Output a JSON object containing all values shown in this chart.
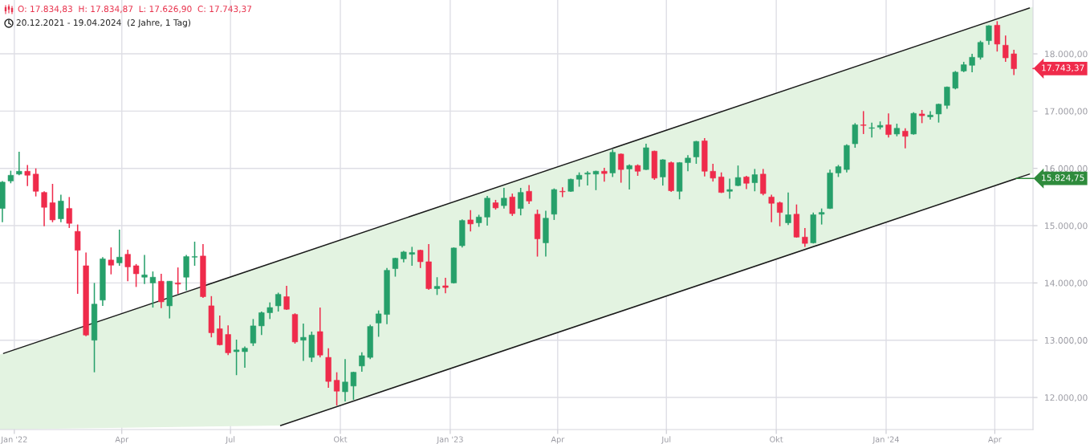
{
  "chart_data": {
    "type": "candlestick",
    "title": "O: 17.834,83  H: 17.834,87  L: 17.626,90  C: 17.743,37",
    "subtitle": "20.12.2021 - 19.04.2024  (2 Jahre, 1 Tag)",
    "x": [
      "2021-12-22",
      "2021-12-29",
      "2022-01-05",
      "2022-01-12",
      "2022-01-19",
      "2022-01-26",
      "2022-02-02",
      "2022-02-09",
      "2022-02-16",
      "2022-02-23",
      "2022-03-02",
      "2022-03-09",
      "2022-03-16",
      "2022-03-23",
      "2022-03-30",
      "2022-04-06",
      "2022-04-13",
      "2022-04-20",
      "2022-04-27",
      "2022-05-04",
      "2022-05-11",
      "2022-05-18",
      "2022-05-25",
      "2022-06-01",
      "2022-06-08",
      "2022-06-15",
      "2022-06-22",
      "2022-06-29",
      "2022-07-06",
      "2022-07-13",
      "2022-07-20",
      "2022-07-27",
      "2022-08-03",
      "2022-08-10",
      "2022-08-17",
      "2022-08-24",
      "2022-08-31",
      "2022-09-07",
      "2022-09-14",
      "2022-09-21",
      "2022-09-28",
      "2022-10-05",
      "2022-10-12",
      "2022-10-19",
      "2022-10-26",
      "2022-11-02",
      "2022-11-09",
      "2022-11-16",
      "2022-11-23",
      "2022-11-30",
      "2022-12-07",
      "2022-12-14",
      "2022-12-21",
      "2022-12-28",
      "2023-01-04",
      "2023-01-11",
      "2023-01-18",
      "2023-01-25",
      "2023-02-01",
      "2023-02-08",
      "2023-02-15",
      "2023-02-22",
      "2023-03-01",
      "2023-03-08",
      "2023-03-15",
      "2023-03-22",
      "2023-03-29",
      "2023-04-05",
      "2023-04-12",
      "2023-04-19",
      "2023-04-26",
      "2023-05-03",
      "2023-05-10",
      "2023-05-17",
      "2023-05-24",
      "2023-05-31",
      "2023-06-07",
      "2023-06-14",
      "2023-06-21",
      "2023-06-28",
      "2023-07-05",
      "2023-07-12",
      "2023-07-19",
      "2023-07-26",
      "2023-08-02",
      "2023-08-09",
      "2023-08-16",
      "2023-08-23",
      "2023-08-30",
      "2023-09-06",
      "2023-09-13",
      "2023-09-20",
      "2023-09-27",
      "2023-10-04",
      "2023-10-11",
      "2023-10-18",
      "2023-10-25",
      "2023-11-01",
      "2023-11-08",
      "2023-11-15",
      "2023-11-22",
      "2023-11-29",
      "2023-12-06",
      "2023-12-13",
      "2023-12-20",
      "2023-12-27",
      "2024-01-03",
      "2024-01-10",
      "2024-01-17",
      "2024-01-24",
      "2024-01-31",
      "2024-02-07",
      "2024-02-14",
      "2024-02-21",
      "2024-02-28",
      "2024-03-06",
      "2024-03-13",
      "2024-03-20",
      "2024-03-27",
      "2024-04-03",
      "2024-04-10",
      "2024-04-17"
    ],
    "ohlc": [
      [
        15300,
        15780,
        15060,
        15760
      ],
      [
        15780,
        15960,
        15740,
        15880
      ],
      [
        15900,
        16290,
        15880,
        15950
      ],
      [
        15950,
        16060,
        15690,
        15880
      ],
      [
        15900,
        16000,
        15510,
        15600
      ],
      [
        15580,
        15600,
        14990,
        15320
      ],
      [
        15400,
        15730,
        15060,
        15100
      ],
      [
        15120,
        15540,
        15060,
        15430
      ],
      [
        15300,
        15500,
        14960,
        15040
      ],
      [
        14900,
        15020,
        13810,
        14570
      ],
      [
        14300,
        14530,
        13070,
        13090
      ],
      [
        13000,
        14000,
        12440,
        13630
      ],
      [
        13700,
        14450,
        13600,
        14420
      ],
      [
        14400,
        14620,
        14150,
        14310
      ],
      [
        14350,
        14930,
        14300,
        14450
      ],
      [
        14500,
        14580,
        14030,
        14280
      ],
      [
        14300,
        14330,
        13930,
        14160
      ],
      [
        14100,
        14490,
        13980,
        14140
      ],
      [
        14000,
        14200,
        13570,
        14100
      ],
      [
        14030,
        14160,
        13560,
        13670
      ],
      [
        13600,
        14030,
        13380,
        14030
      ],
      [
        14000,
        14270,
        13810,
        13980
      ],
      [
        14100,
        14490,
        13870,
        14460
      ],
      [
        14450,
        14720,
        14300,
        14460
      ],
      [
        14470,
        14680,
        13740,
        13760
      ],
      [
        13600,
        13770,
        13050,
        13130
      ],
      [
        13200,
        13430,
        12910,
        12920
      ],
      [
        13100,
        13260,
        12740,
        12780
      ],
      [
        12800,
        13010,
        12390,
        12830
      ],
      [
        12800,
        12890,
        12520,
        12860
      ],
      [
        12950,
        13370,
        12900,
        13250
      ],
      [
        13250,
        13500,
        13090,
        13480
      ],
      [
        13480,
        13660,
        13370,
        13570
      ],
      [
        13600,
        13830,
        13500,
        13800
      ],
      [
        13760,
        13950,
        13530,
        13540
      ],
      [
        13450,
        13470,
        12940,
        12970
      ],
      [
        13000,
        13290,
        12640,
        13050
      ],
      [
        12700,
        13150,
        12620,
        13090
      ],
      [
        13150,
        13570,
        12700,
        12740
      ],
      [
        12700,
        12860,
        12170,
        12280
      ],
      [
        12300,
        12440,
        11860,
        12110
      ],
      [
        12100,
        12670,
        11930,
        12270
      ],
      [
        12200,
        12450,
        11960,
        12440
      ],
      [
        12550,
        12790,
        12450,
        12730
      ],
      [
        12700,
        13270,
        12670,
        13240
      ],
      [
        13300,
        13520,
        13060,
        13460
      ],
      [
        13450,
        14260,
        13280,
        14220
      ],
      [
        14250,
        14440,
        14110,
        14430
      ],
      [
        14420,
        14560,
        14360,
        14540
      ],
      [
        14500,
        14630,
        14300,
        14530
      ],
      [
        14570,
        14580,
        14260,
        14370
      ],
      [
        14370,
        14680,
        13880,
        13900
      ],
      [
        13900,
        14100,
        13790,
        13940
      ],
      [
        13950,
        14090,
        13820,
        13920
      ],
      [
        14000,
        14620,
        13990,
        14610
      ],
      [
        14650,
        15110,
        14620,
        15090
      ],
      [
        15100,
        15270,
        14900,
        15030
      ],
      [
        15050,
        15190,
        14980,
        15150
      ],
      [
        15150,
        15520,
        15000,
        15480
      ],
      [
        15400,
        15450,
        15280,
        15310
      ],
      [
        15350,
        15660,
        15300,
        15480
      ],
      [
        15500,
        15560,
        15170,
        15210
      ],
      [
        15300,
        15660,
        15180,
        15580
      ],
      [
        15600,
        15710,
        15380,
        15430
      ],
      [
        15200,
        15280,
        14460,
        14770
      ],
      [
        14700,
        15260,
        14460,
        15130
      ],
      [
        15200,
        15650,
        15100,
        15630
      ],
      [
        15600,
        15670,
        15500,
        15590
      ],
      [
        15600,
        15820,
        15590,
        15810
      ],
      [
        15810,
        15930,
        15680,
        15880
      ],
      [
        15900,
        15950,
        15700,
        15920
      ],
      [
        15900,
        15960,
        15620,
        15950
      ],
      [
        15950,
        16010,
        15770,
        15910
      ],
      [
        15920,
        16330,
        15850,
        16280
      ],
      [
        16250,
        16260,
        15750,
        15980
      ],
      [
        15990,
        16070,
        15630,
        16050
      ],
      [
        16050,
        16070,
        15870,
        15950
      ],
      [
        15980,
        16430,
        15970,
        16360
      ],
      [
        16300,
        16310,
        15800,
        15830
      ],
      [
        15850,
        16160,
        15700,
        16150
      ],
      [
        16100,
        16120,
        15590,
        15610
      ],
      [
        15600,
        16110,
        15460,
        16100
      ],
      [
        16100,
        16230,
        15950,
        16180
      ],
      [
        16200,
        16480,
        16080,
        16470
      ],
      [
        16480,
        16530,
        15860,
        15950
      ],
      [
        15950,
        16080,
        15770,
        15830
      ],
      [
        15850,
        15930,
        15570,
        15580
      ],
      [
        15600,
        15820,
        15470,
        15630
      ],
      [
        15700,
        16050,
        15690,
        15840
      ],
      [
        15850,
        15870,
        15640,
        15740
      ],
      [
        15750,
        15990,
        15600,
        15890
      ],
      [
        15900,
        15990,
        15530,
        15560
      ],
      [
        15500,
        15540,
        15060,
        15390
      ],
      [
        15400,
        15420,
        14990,
        15230
      ],
      [
        15050,
        15580,
        15010,
        15190
      ],
      [
        15200,
        15370,
        14790,
        14800
      ],
      [
        14800,
        14960,
        14630,
        14690
      ],
      [
        14700,
        15230,
        14690,
        15190
      ],
      [
        15200,
        15300,
        15020,
        15230
      ],
      [
        15300,
        15980,
        15290,
        15920
      ],
      [
        15920,
        16060,
        15850,
        16030
      ],
      [
        15980,
        16420,
        15930,
        16400
      ],
      [
        16430,
        16790,
        16360,
        16760
      ],
      [
        16760,
        17000,
        16600,
        16750
      ],
      [
        16700,
        16800,
        16540,
        16710
      ],
      [
        16720,
        16820,
        16680,
        16750
      ],
      [
        16760,
        16960,
        16540,
        16590
      ],
      [
        16600,
        16780,
        16560,
        16700
      ],
      [
        16650,
        16700,
        16350,
        16560
      ],
      [
        16600,
        16980,
        16590,
        16960
      ],
      [
        16950,
        17020,
        16790,
        16920
      ],
      [
        16900,
        17000,
        16850,
        16930
      ],
      [
        16950,
        17130,
        16800,
        17120
      ],
      [
        17100,
        17430,
        17040,
        17420
      ],
      [
        17400,
        17700,
        17380,
        17680
      ],
      [
        17700,
        17860,
        17680,
        17810
      ],
      [
        17800,
        18000,
        17680,
        17940
      ],
      [
        17940,
        18230,
        17900,
        18200
      ],
      [
        18230,
        18500,
        18160,
        18490
      ],
      [
        18500,
        18570,
        18040,
        18170
      ],
      [
        18150,
        18320,
        17860,
        17930
      ],
      [
        18000,
        18070,
        17630,
        17740
      ]
    ],
    "colors": [
      "#26a06a",
      "#26a06a",
      "#26a06a",
      "#ef2b4b",
      "#ef2b4b",
      "#ef2b4b",
      "#ef2b4b",
      "#26a06a",
      "#ef2b4b",
      "#ef2b4b",
      "#ef2b4b",
      "#26a06a",
      "#26a06a",
      "#ef2b4b",
      "#26a06a",
      "#ef2b4b",
      "#ef2b4b",
      "#26a06a",
      "#26a06a",
      "#ef2b4b",
      "#26a06a",
      "#ef2b4b",
      "#26a06a",
      "#26a06a",
      "#ef2b4b",
      "#ef2b4b",
      "#ef2b4b",
      "#ef2b4b",
      "#26a06a",
      "#26a06a",
      "#26a06a",
      "#26a06a",
      "#26a06a",
      "#26a06a",
      "#ef2b4b",
      "#ef2b4b",
      "#26a06a",
      "#26a06a",
      "#ef2b4b",
      "#ef2b4b",
      "#ef2b4b",
      "#26a06a",
      "#26a06a",
      "#26a06a",
      "#26a06a",
      "#26a06a",
      "#26a06a",
      "#26a06a",
      "#26a06a",
      "#26a06a",
      "#ef2b4b",
      "#ef2b4b",
      "#26a06a",
      "#ef2b4b",
      "#26a06a",
      "#26a06a",
      "#ef2b4b",
      "#26a06a",
      "#26a06a",
      "#ef2b4b",
      "#26a06a",
      "#ef2b4b",
      "#26a06a",
      "#ef2b4b",
      "#ef2b4b",
      "#26a06a",
      "#26a06a",
      "#ef2b4b",
      "#26a06a",
      "#26a06a",
      "#26a06a",
      "#26a06a",
      "#ef2b4b",
      "#26a06a",
      "#ef2b4b",
      "#26a06a",
      "#ef2b4b",
      "#26a06a",
      "#ef2b4b",
      "#26a06a",
      "#ef2b4b",
      "#26a06a",
      "#26a06a",
      "#26a06a",
      "#ef2b4b",
      "#ef2b4b",
      "#ef2b4b",
      "#26a06a",
      "#26a06a",
      "#ef2b4b",
      "#26a06a",
      "#ef2b4b",
      "#ef2b4b",
      "#ef2b4b",
      "#26a06a",
      "#ef2b4b",
      "#ef2b4b",
      "#26a06a",
      "#26a06a",
      "#26a06a",
      "#26a06a",
      "#26a06a",
      "#26a06a",
      "#ef2b4b",
      "#26a06a",
      "#26a06a",
      "#ef2b4b",
      "#26a06a",
      "#ef2b4b",
      "#26a06a",
      "#ef2b4b",
      "#26a06a",
      "#26a06a",
      "#26a06a",
      "#26a06a",
      "#26a06a",
      "#26a06a",
      "#26a06a",
      "#26a06a",
      "#ef2b4b",
      "#ef2b4b",
      "#ef2b4b"
    ],
    "series": [
      {
        "type": "line",
        "x": [
          "2021-12-23",
          "2024-04-30"
        ],
        "values": [
          12770,
          18800
        ],
        "color": "#1a1a1a"
      },
      {
        "type": "line",
        "x": [
          "2021-12-20",
          "2022-08-12",
          "2024-04-30",
          "2024-05-03"
        ],
        "values": [
          null,
          11510,
          15900,
          null
        ],
        "lower": [
          11440,
          11510,
          15900,
          15920
        ],
        "upper": [
          12750,
          14400,
          18800,
          18820
        ],
        "color": "#1a1a1a"
      }
    ],
    "xlim": [
      "2021-12-20",
      "2024-05-03"
    ],
    "xticks": [
      {
        "value": "2022-01-01",
        "label": "Jan '22"
      },
      {
        "value": "2022-04-01",
        "label": "Apr"
      },
      {
        "value": "2022-07-01",
        "label": "Jul"
      },
      {
        "value": "2022-10-01",
        "label": "Okt"
      },
      {
        "value": "2023-01-01",
        "label": "Jan '23"
      },
      {
        "value": "2023-04-01",
        "label": "Apr"
      },
      {
        "value": "2023-07-01",
        "label": "Jul"
      },
      {
        "value": "2023-10-01",
        "label": "Okt"
      },
      {
        "value": "2024-01-01",
        "label": "Jan '24"
      },
      {
        "value": "2024-04-01",
        "label": "Apr"
      }
    ],
    "ylim": [
      11440,
      18940
    ],
    "yticks": [
      {
        "value": 12000,
        "label": "12.000,00"
      },
      {
        "value": 13000,
        "label": "13.000,00"
      },
      {
        "value": 14000,
        "label": "14.000,00"
      },
      {
        "value": 15000,
        "label": "15.000,00"
      },
      {
        "value": 16000,
        "label": "16.000,00"
      },
      {
        "value": 17000,
        "label": "17.000,00"
      },
      {
        "value": 18000,
        "label": "18.000,00"
      }
    ],
    "grid": true,
    "annotations": [
      {
        "text": "17.743,37",
        "x": "2024-05-03",
        "y": 17743.37
      },
      {
        "text": "15.824,75",
        "x": "2024-04-19",
        "y": 15824.75
      }
    ]
  }
}
